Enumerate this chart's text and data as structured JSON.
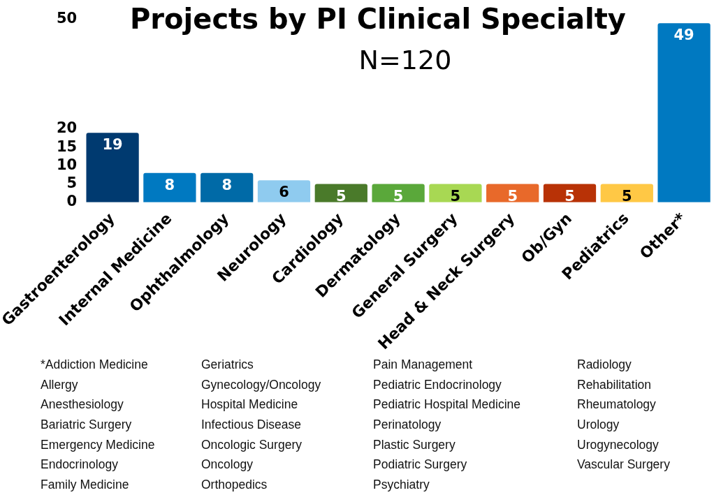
{
  "chart_data": {
    "type": "bar",
    "title": "Projects by PI Clinical Specialty",
    "subtitle": "N=120",
    "categories": [
      "Gastroenterology",
      "Internal Medicine",
      "Ophthalmology",
      "Neurology",
      "Cardiology",
      "Dermatology",
      "General Surgery",
      "Head & Neck Surgery",
      "Ob/Gyn",
      "Pediatrics",
      "Other*"
    ],
    "values": [
      19,
      8,
      8,
      6,
      5,
      5,
      5,
      5,
      5,
      5,
      49
    ],
    "colors": [
      "#003a70",
      "#0079c1",
      "#006aa7",
      "#8fcbef",
      "#4a7a2a",
      "#5aa83a",
      "#a8d853",
      "#e8692a",
      "#b83206",
      "#ffc845",
      "#0079c1"
    ],
    "ylim": [
      0,
      50
    ],
    "yticks": [
      0,
      5,
      10,
      15,
      20,
      50
    ],
    "grid": false,
    "legend": false,
    "data_labels": true,
    "annotations": [
      "*Addiction Medicine",
      "Allergy",
      "Anesthesiology",
      "Bariatric Surgery",
      "Emergency Medicine",
      "Endocrinology",
      "Family Medicine",
      "Geriatrics",
      "Gynecology/Oncology",
      "Hospital Medicine",
      "Infectious Disease",
      "Oncologic Surgery",
      "Oncology",
      "Orthopedics",
      "Pain Management",
      "Pediatric Endocrinology",
      "Pediatric Hospital Medicine",
      "Perinatology",
      "Plastic Surgery",
      "Podiatric Surgery",
      "Psychiatry",
      "Radiology",
      "Rehabilitation",
      "Rheumatology",
      "Urology",
      "Urogynecology",
      "Vascular Surgery"
    ]
  }
}
